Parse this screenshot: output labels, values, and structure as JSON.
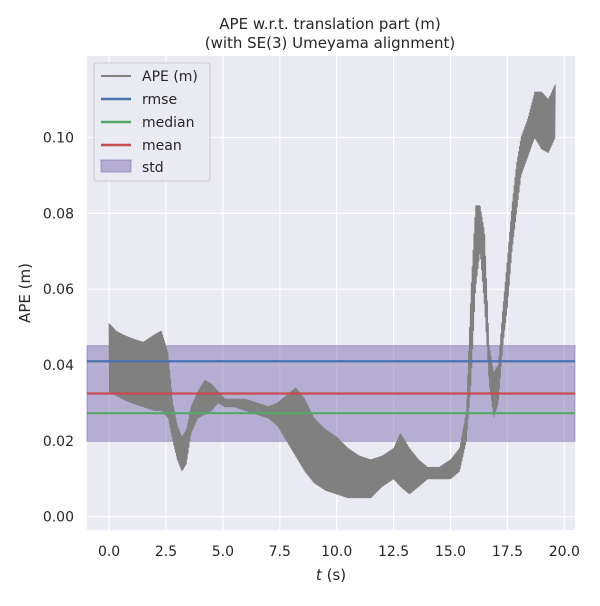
{
  "chart_data": {
    "type": "line",
    "title": "APE w.r.t. translation part (m)",
    "subtitle": "(with SE(3) Umeyama alignment)",
    "xlabel_var": "t",
    "xlabel_unit": " (s)",
    "ylabel": "APE (m)",
    "xlim": [
      -0.97,
      20.47
    ],
    "ylim": [
      -0.0035,
      0.1215
    ],
    "xticks": [
      0.0,
      2.5,
      5.0,
      7.5,
      10.0,
      12.5,
      15.0,
      17.5,
      20.0
    ],
    "xtick_labels": [
      "0.0",
      "2.5",
      "5.0",
      "7.5",
      "10.0",
      "12.5",
      "15.0",
      "17.5",
      "20.0"
    ],
    "yticks": [
      0.0,
      0.02,
      0.04,
      0.06,
      0.08,
      0.1
    ],
    "ytick_labels": [
      "0.00",
      "0.02",
      "0.04",
      "0.06",
      "0.08",
      "0.10"
    ],
    "grid": true,
    "legend_position": "top-left",
    "statistics": {
      "rmse": 0.041,
      "median": 0.0273,
      "mean": 0.0325,
      "std": 0.0126
    },
    "series": [
      {
        "name": "APE (m)",
        "color": "#808080",
        "x": [
          0.0,
          0.3,
          0.6,
          1.0,
          1.5,
          2.0,
          2.3,
          2.6,
          2.8,
          3.0,
          3.2,
          3.4,
          3.6,
          3.9,
          4.2,
          4.5,
          4.8,
          5.1,
          5.5,
          6.0,
          6.5,
          7.0,
          7.4,
          7.8,
          8.2,
          8.6,
          9.0,
          9.5,
          10.0,
          10.5,
          11.0,
          11.5,
          12.0,
          12.5,
          12.8,
          13.2,
          13.6,
          14.0,
          14.5,
          15.0,
          15.4,
          15.7,
          15.9,
          16.1,
          16.3,
          16.5,
          16.7,
          16.9,
          17.1,
          17.3,
          17.5,
          17.7,
          17.9,
          18.1,
          18.4,
          18.7,
          19.0,
          19.3,
          19.6
        ],
        "y_low": [
          0.033,
          0.032,
          0.031,
          0.03,
          0.029,
          0.028,
          0.028,
          0.026,
          0.02,
          0.015,
          0.012,
          0.014,
          0.022,
          0.026,
          0.027,
          0.028,
          0.03,
          0.029,
          0.029,
          0.028,
          0.027,
          0.026,
          0.024,
          0.02,
          0.016,
          0.012,
          0.009,
          0.007,
          0.006,
          0.005,
          0.005,
          0.005,
          0.008,
          0.01,
          0.008,
          0.006,
          0.008,
          0.01,
          0.01,
          0.01,
          0.012,
          0.02,
          0.035,
          0.06,
          0.07,
          0.055,
          0.035,
          0.026,
          0.03,
          0.045,
          0.055,
          0.07,
          0.08,
          0.09,
          0.095,
          0.1,
          0.097,
          0.096,
          0.1
        ],
        "y_high": [
          0.051,
          0.049,
          0.048,
          0.047,
          0.046,
          0.048,
          0.049,
          0.043,
          0.03,
          0.024,
          0.021,
          0.023,
          0.029,
          0.033,
          0.036,
          0.035,
          0.033,
          0.031,
          0.031,
          0.031,
          0.03,
          0.029,
          0.03,
          0.032,
          0.034,
          0.031,
          0.026,
          0.023,
          0.021,
          0.018,
          0.016,
          0.015,
          0.016,
          0.018,
          0.022,
          0.018,
          0.015,
          0.013,
          0.013,
          0.015,
          0.018,
          0.028,
          0.06,
          0.082,
          0.082,
          0.075,
          0.045,
          0.038,
          0.04,
          0.055,
          0.068,
          0.082,
          0.093,
          0.1,
          0.105,
          0.112,
          0.112,
          0.11,
          0.114
        ]
      },
      {
        "name": "rmse",
        "color": "#4c72b0",
        "value": 0.041
      },
      {
        "name": "median",
        "color": "#55a868",
        "value": 0.0273
      },
      {
        "name": "mean",
        "color": "#c44e52",
        "value": 0.0325
      },
      {
        "name": "std",
        "color": "#8172b2"
      }
    ]
  }
}
